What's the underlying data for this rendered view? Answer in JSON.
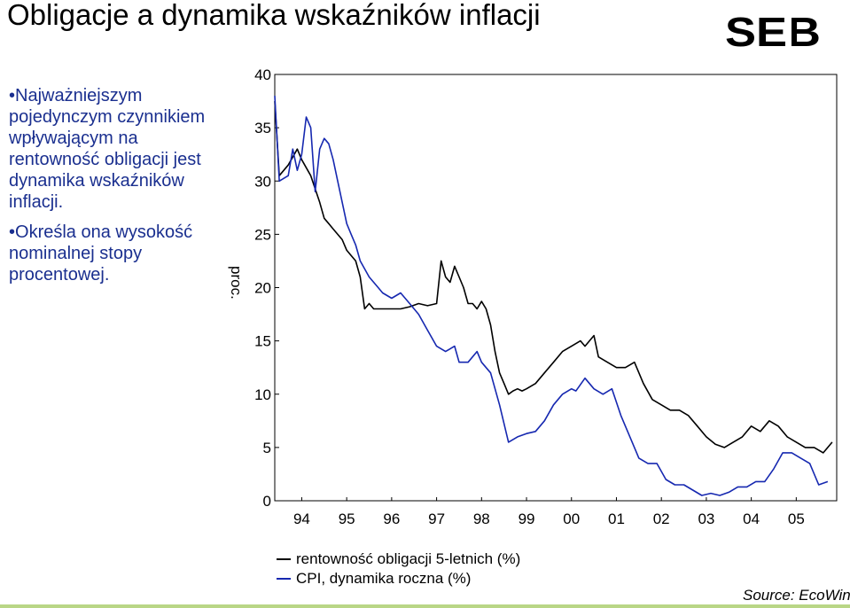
{
  "slide": {
    "title": "Obligacje a dynamika wskaźników inflacji",
    "logo_text": "SEB",
    "bullets": [
      "Najważniejszym pojedynczym czynnikiem wpływającym na rentowność obligacji jest dynamika wskaźników inflacji.",
      "Określa ona wysokość nominalnej stopy procentowej."
    ],
    "source": "Source: EcoWin",
    "colors": {
      "bullet_text": "#1a2f8f",
      "bond_series": "#000000",
      "cpi_series": "#1628b0",
      "accent_line": "#b9d686"
    }
  },
  "chart_data": {
    "type": "line",
    "title": "",
    "xlabel": "",
    "ylabel": "proc.",
    "xlim": [
      1993.4,
      2005.9
    ],
    "ylim": [
      0,
      40
    ],
    "x_ticks": [
      1994,
      1995,
      1996,
      1997,
      1998,
      1999,
      2000,
      2001,
      2002,
      2003,
      2004,
      2005
    ],
    "x_tick_labels": [
      "94",
      "95",
      "96",
      "97",
      "98",
      "99",
      "00",
      "01",
      "02",
      "03",
      "04",
      "05"
    ],
    "y_ticks": [
      0,
      5,
      10,
      15,
      20,
      25,
      30,
      35,
      40
    ],
    "y_tick_labels": [
      "0",
      "5",
      "10",
      "15",
      "20",
      "25",
      "30",
      "35",
      "40"
    ],
    "legend": "bottom-left",
    "series": [
      {
        "name": "rentowność obligacji 5-letnich (%)",
        "color": "#000000",
        "x": [
          1993.4,
          1993.5,
          1993.7,
          1993.9,
          1994.0,
          1994.2,
          1994.4,
          1994.5,
          1994.6,
          1994.7,
          1994.8,
          1994.9,
          1995.0,
          1995.1,
          1995.2,
          1995.3,
          1995.4,
          1995.5,
          1995.6,
          1995.7,
          1995.8,
          1995.9,
          1996.0,
          1996.2,
          1996.4,
          1996.6,
          1996.8,
          1997.0,
          1997.1,
          1997.2,
          1997.3,
          1997.4,
          1997.5,
          1997.6,
          1997.7,
          1997.8,
          1997.9,
          1998.0,
          1998.1,
          1998.2,
          1998.3,
          1998.4,
          1998.5,
          1998.6,
          1998.7,
          1998.8,
          1998.9,
          1999.0,
          1999.2,
          1999.4,
          1999.6,
          1999.8,
          2000.0,
          2000.2,
          2000.3,
          2000.5,
          2000.6,
          2000.8,
          2001.0,
          2001.2,
          2001.4,
          2001.6,
          2001.8,
          2002.0,
          2002.2,
          2002.4,
          2002.6,
          2002.8,
          2003.0,
          2003.2,
          2003.4,
          2003.6,
          2003.8,
          2004.0,
          2004.2,
          2004.4,
          2004.6,
          2004.8,
          2005.0,
          2005.2,
          2005.4,
          2005.6,
          2005.8
        ],
        "values": [
          37.5,
          30.5,
          31.5,
          33,
          32,
          30.5,
          28,
          26.5,
          26,
          25.5,
          25,
          24.5,
          23.5,
          23,
          22.5,
          21,
          18,
          18.5,
          18,
          18,
          18,
          18,
          18,
          18,
          18.2,
          18.5,
          18.3,
          18.5,
          22.5,
          21,
          20.5,
          22,
          21,
          20,
          18.5,
          18.5,
          18,
          18.7,
          18,
          16.5,
          14,
          12,
          11,
          10,
          10.3,
          10.5,
          10.3,
          10.5,
          11,
          12,
          13,
          14,
          14.5,
          15,
          14.5,
          15.5,
          13.5,
          13,
          12.5,
          12.5,
          13,
          11,
          9.5,
          9,
          8.5,
          8.5,
          8,
          7,
          6,
          5.3,
          5,
          5.5,
          6,
          7,
          6.5,
          7.5,
          7,
          6,
          5.5,
          5,
          5,
          4.5,
          5.5
        ]
      },
      {
        "name": "CPI, dynamika roczna (%)",
        "color": "#1628b0",
        "x": [
          1993.4,
          1993.5,
          1993.7,
          1993.8,
          1993.9,
          1994.0,
          1994.1,
          1994.2,
          1994.3,
          1994.4,
          1994.5,
          1994.6,
          1994.7,
          1994.8,
          1994.9,
          1995.0,
          1995.1,
          1995.2,
          1995.3,
          1995.5,
          1995.7,
          1995.8,
          1996.0,
          1996.2,
          1996.4,
          1996.6,
          1996.8,
          1997.0,
          1997.2,
          1997.4,
          1997.5,
          1997.7,
          1997.9,
          1998.0,
          1998.2,
          1998.4,
          1998.6,
          1998.8,
          1999.0,
          1999.2,
          1999.4,
          1999.6,
          1999.8,
          2000.0,
          2000.1,
          2000.3,
          2000.5,
          2000.7,
          2000.9,
          2001.1,
          2001.3,
          2001.5,
          2001.7,
          2001.9,
          2002.1,
          2002.3,
          2002.5,
          2002.7,
          2002.9,
          2003.1,
          2003.3,
          2003.5,
          2003.7,
          2003.9,
          2004.1,
          2004.3,
          2004.5,
          2004.7,
          2004.9,
          2005.1,
          2005.3,
          2005.5,
          2005.7
        ],
        "values": [
          38,
          30,
          30.5,
          33,
          31,
          32.5,
          36,
          35,
          29,
          33,
          34,
          33.5,
          32,
          30,
          28,
          26,
          25,
          24,
          22.5,
          21,
          20,
          19.5,
          19,
          19.5,
          18.5,
          17.5,
          16,
          14.5,
          14,
          14.5,
          13,
          13,
          14,
          13,
          12,
          9,
          5.5,
          6,
          6.3,
          6.5,
          7.5,
          9,
          10,
          10.5,
          10.3,
          11.5,
          10.5,
          10,
          10.5,
          8,
          6,
          4,
          3.5,
          3.5,
          2,
          1.5,
          1.5,
          1,
          0.5,
          0.7,
          0.5,
          0.8,
          1.3,
          1.3,
          1.8,
          1.8,
          3,
          4.5,
          4.5,
          4,
          3.5,
          1.5,
          1.8
        ]
      }
    ]
  }
}
